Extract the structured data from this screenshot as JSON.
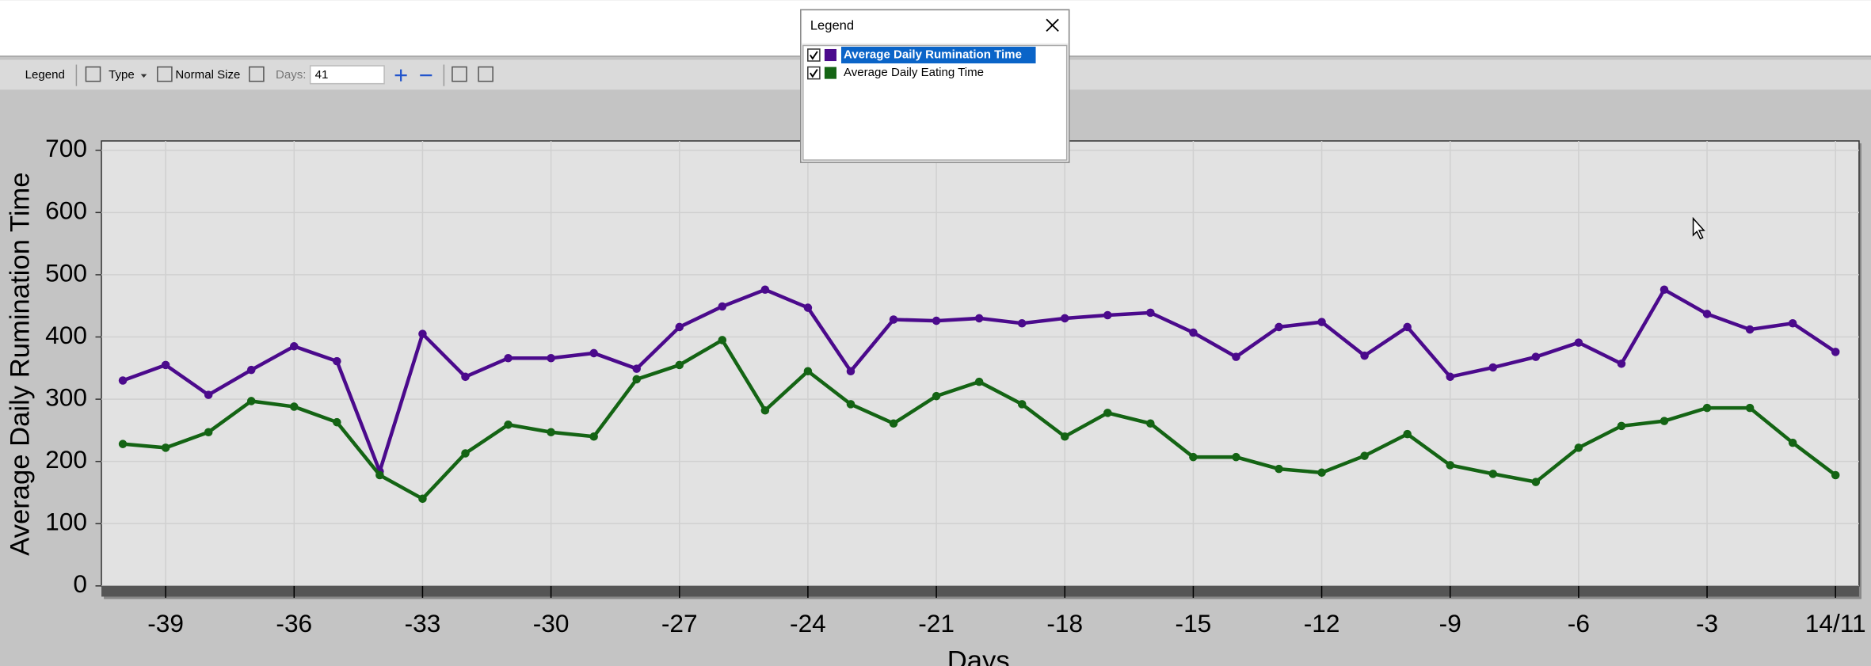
{
  "ui": {
    "toolbar": {
      "legend": "Legend",
      "type": "Type",
      "normal_size": "Normal Size",
      "days_label": "Days:",
      "days_value": "41"
    },
    "legend_window": {
      "title": "Legend"
    }
  },
  "chart_data": {
    "type": "line",
    "x_label": "Days",
    "y_label": "Average Daily Rumination Time",
    "x": [
      -40,
      -39,
      -38,
      -37,
      -36,
      -35,
      -34,
      -33,
      -32,
      -31,
      -30,
      -29,
      -28,
      -27,
      -26,
      -25,
      -24,
      -23,
      -22,
      -21,
      -20,
      -19,
      -18,
      -17,
      -16,
      -15,
      -14,
      -13,
      -12,
      -11,
      -10,
      -9,
      -8,
      -7,
      -6,
      -5,
      -4,
      -3,
      -2,
      -1,
      0
    ],
    "series": [
      {
        "name": "Average Daily Rumination Time",
        "color": "#4b0a8c",
        "values": [
          330,
          355,
          307,
          347,
          385,
          361,
          184,
          405,
          336,
          366,
          366,
          374,
          349,
          416,
          449,
          476,
          447,
          345,
          428,
          426,
          430,
          422,
          430,
          435,
          439,
          407,
          368,
          416,
          424,
          370,
          416,
          336,
          351,
          368,
          391,
          357,
          476,
          437,
          412,
          422,
          376
        ]
      },
      {
        "name": "Average Daily Eating Time",
        "color": "#146414",
        "values": [
          228,
          222,
          247,
          297,
          288,
          263,
          178,
          140,
          213,
          259,
          247,
          240,
          332,
          355,
          395,
          282,
          345,
          292,
          261,
          305,
          328,
          292,
          240,
          278,
          261,
          207,
          207,
          188,
          182,
          209,
          244,
          194,
          180,
          167,
          222,
          257,
          265,
          286,
          286,
          230,
          178
        ]
      }
    ],
    "xlim": [
      -40.5,
      0.55
    ],
    "ylim": [
      0,
      715
    ],
    "xticks": [
      -39,
      -36,
      -33,
      -30,
      -27,
      -24,
      -21,
      -18,
      -15,
      -12,
      -9,
      -6,
      -3,
      {
        "value": 0,
        "label": "14/11"
      }
    ],
    "yticks": [
      0,
      100,
      200,
      300,
      400,
      500,
      600,
      700
    ],
    "grid": true
  }
}
